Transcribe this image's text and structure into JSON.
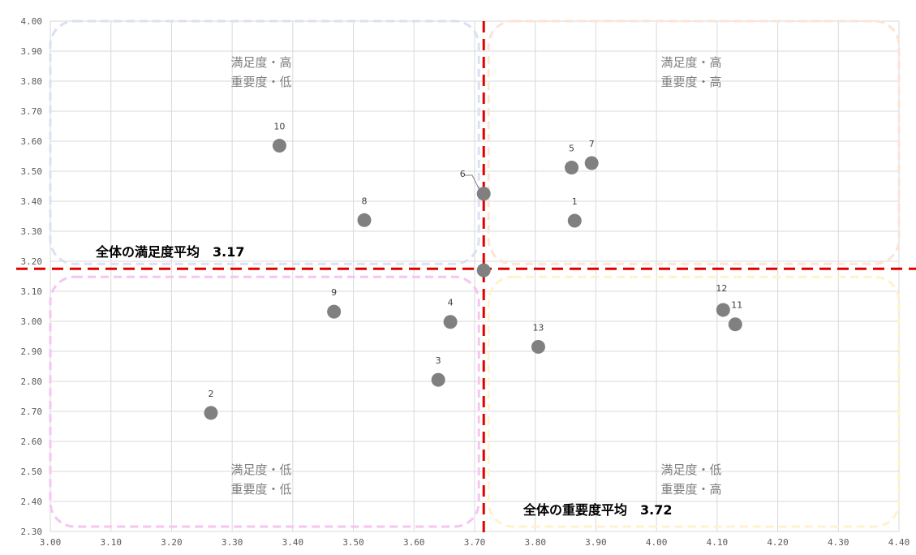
{
  "chart_data": {
    "type": "scatter",
    "title": "",
    "xlabel": "",
    "ylabel": "",
    "xlim": [
      3.0,
      4.4
    ],
    "ylim": [
      2.3,
      4.0
    ],
    "x_ticks": [
      "3.00",
      "3.10",
      "3.20",
      "3.30",
      "3.40",
      "3.50",
      "3.60",
      "3.70",
      "3.80",
      "3.90",
      "4.00",
      "4.10",
      "4.20",
      "4.30",
      "4.40"
    ],
    "y_ticks": [
      "4.00",
      "3.90",
      "3.80",
      "3.70",
      "3.60",
      "3.50",
      "3.40",
      "3.30",
      "3.20",
      "3.10",
      "3.00",
      "2.90",
      "2.80",
      "2.70",
      "2.60",
      "2.50",
      "2.40",
      "2.30"
    ],
    "grid": true,
    "marker_color": "#808080",
    "average_line_color": "#e00000",
    "average_x": 3.715,
    "average_y": 3.175,
    "average_point": [
      3.715,
      3.17
    ],
    "average_labels": {
      "satisfaction": "全体の満足度平均　3.17",
      "importance": "全体の重要度平均　3.72"
    },
    "quadrants": [
      {
        "name": "top-left",
        "line1": "満足度・高",
        "line2": "重要度・低",
        "border_color": "#d9e1f2"
      },
      {
        "name": "top-right",
        "line1": "満足度・高",
        "line2": "重要度・高",
        "border_color": "#fce4d6"
      },
      {
        "name": "bottom-left",
        "line1": "満足度・低",
        "line2": "重要度・低",
        "border_color": "#f4c6f0"
      },
      {
        "name": "bottom-right",
        "line1": "満足度・低",
        "line2": "重要度・高",
        "border_color": "#fff2cc"
      }
    ],
    "points": [
      {
        "label": "1",
        "x": 3.865,
        "y": 3.335
      },
      {
        "label": "2",
        "x": 3.265,
        "y": 2.695
      },
      {
        "label": "3",
        "x": 3.64,
        "y": 2.805
      },
      {
        "label": "4",
        "x": 3.66,
        "y": 2.998
      },
      {
        "label": "5",
        "x": 3.86,
        "y": 3.512
      },
      {
        "label": "6",
        "x": 3.715,
        "y": 3.425
      },
      {
        "label": "7",
        "x": 3.893,
        "y": 3.527
      },
      {
        "label": "8",
        "x": 3.518,
        "y": 3.337
      },
      {
        "label": "9",
        "x": 3.468,
        "y": 3.032
      },
      {
        "label": "10",
        "x": 3.378,
        "y": 3.585
      },
      {
        "label": "11",
        "x": 4.13,
        "y": 2.99
      },
      {
        "label": "12",
        "x": 4.11,
        "y": 3.038
      },
      {
        "label": "13",
        "x": 3.805,
        "y": 2.915
      }
    ]
  }
}
